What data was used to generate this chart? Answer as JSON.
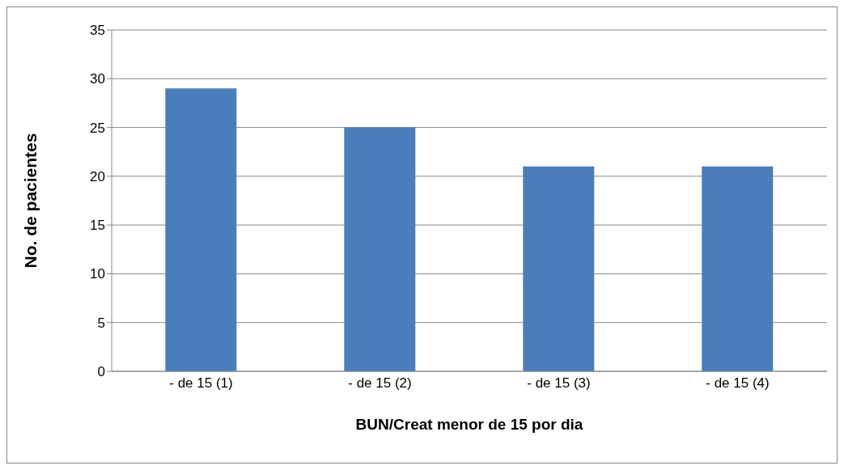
{
  "chart_data": {
    "type": "bar",
    "xlabel": "BUN/Creat menor de 15 por dia",
    "ylabel": "No. de pacientes",
    "categories": [
      "- de 15 (1)",
      "- de 15 (2)",
      "- de 15 (3)",
      "- de 15 (4)"
    ],
    "values": [
      29,
      25,
      21,
      21
    ],
    "color": "#4a7ebb",
    "ylim": [
      0,
      35
    ],
    "yticks": [
      0,
      5,
      10,
      15,
      20,
      25,
      30,
      35
    ],
    "grid": "y"
  }
}
